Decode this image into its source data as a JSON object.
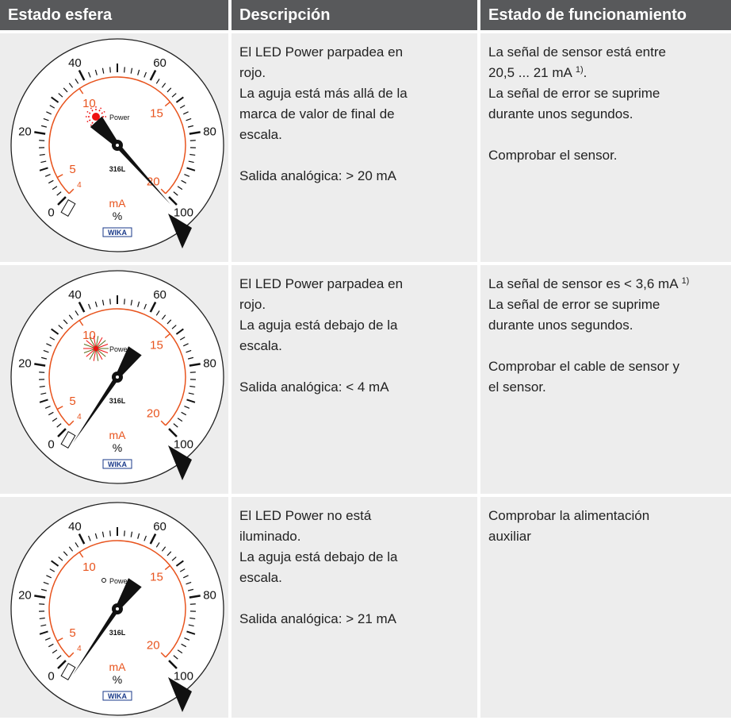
{
  "header": [
    "Estado esfera",
    "Descripción",
    "Estado de funcionamiento"
  ],
  "dial": {
    "scale_outer": [
      "0",
      "20",
      "40",
      "60",
      "80",
      "100"
    ],
    "scale_inner": [
      "4",
      "5",
      "10",
      "15",
      "20"
    ],
    "unit": "mA",
    "percent": "%",
    "led": "Power",
    "material": "316L",
    "brand": "WIKA"
  },
  "rows": [
    {
      "description": [
        [
          "El LED Power parpadea en",
          "rojo.",
          "La aguja está más allá de la",
          "marca de valor de final de",
          "escala."
        ],
        [
          "Salida analógica: > 20 mA"
        ]
      ],
      "status": [
        [
          "La señal de sensor está entre",
          {
            "text": "20,5 ... 21 mA",
            "sup": "1)",
            "after": "."
          },
          "La señal de error se suprime",
          "durante unos segundos."
        ],
        [
          "Comprobar el sensor."
        ]
      ]
    },
    {
      "description": [
        [
          "El LED Power parpadea en",
          "rojo.",
          "La aguja está debajo de la",
          "escala."
        ],
        [
          "Salida analógica: < 4 mA"
        ]
      ],
      "status": [
        [
          {
            "text": "La señal de sensor es < 3,6 mA",
            "sup": "1)"
          },
          "La señal de error se suprime",
          "durante unos segundos."
        ],
        [
          "Comprobar el cable de sensor y",
          "el sensor."
        ]
      ]
    },
    {
      "description": [
        [
          "El LED Power no está",
          "iluminado.",
          "La aguja está debajo de la",
          "escala."
        ],
        [
          "Salida analógica: > 21 mA"
        ]
      ],
      "status": [
        [
          "Comprobar la alimentación",
          "auxiliar"
        ]
      ]
    }
  ]
}
